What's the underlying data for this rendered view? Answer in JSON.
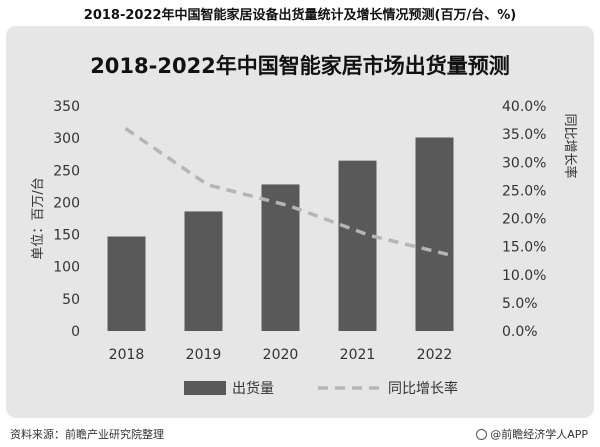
{
  "page": {
    "outer_title": "2018-2022年中国智能家居设备出货量统计及增长情况预测(百万/台、%)",
    "footer_source": "资料来源：前瞻产业研究院整理",
    "footer_brand": "@前瞻经济学人APP"
  },
  "chart_data": {
    "type": "bar",
    "title": "2018-2022年中国智能家居市场出货量预测",
    "categories": [
      "2018",
      "2019",
      "2020",
      "2021",
      "2022"
    ],
    "series": [
      {
        "name": "出货量",
        "type": "bar",
        "axis": "left",
        "values": [
          147,
          186,
          228,
          265,
          301
        ]
      },
      {
        "name": "同比增长率",
        "type": "line",
        "axis": "right",
        "style": "dashed",
        "values": [
          36.0,
          26.0,
          22.3,
          17.0,
          13.5
        ]
      }
    ],
    "y_left": {
      "label": "单位：百万/台",
      "min": 0,
      "max": 350,
      "ticks": [
        "0",
        "50",
        "100",
        "150",
        "200",
        "250",
        "300",
        "350"
      ]
    },
    "y_right": {
      "label": "同比增长率",
      "min": 0,
      "max": 40,
      "ticks": [
        "0.0%",
        "5.0%",
        "10.0%",
        "15.0%",
        "20.0%",
        "25.0%",
        "30.0%",
        "35.0%",
        "40.0%"
      ]
    },
    "grid": false,
    "legend_position": "bottom",
    "colors": {
      "bar": "#595959",
      "line": "#b5b5b5",
      "text": "#333333"
    }
  }
}
